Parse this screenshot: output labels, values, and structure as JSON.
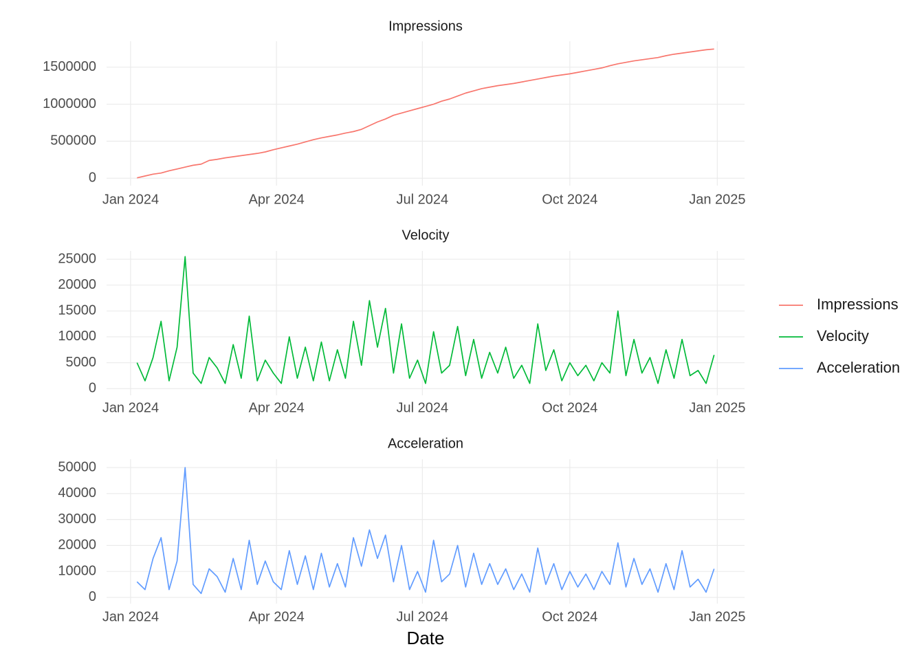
{
  "chart_data": [
    {
      "type": "line",
      "title": "Impressions",
      "x": [
        4,
        9,
        14,
        19,
        24,
        29,
        34,
        39,
        44,
        49,
        54,
        59,
        64,
        69,
        74,
        79,
        84,
        89,
        94,
        99,
        104,
        109,
        114,
        119,
        124,
        129,
        134,
        139,
        144,
        149,
        154,
        159,
        164,
        169,
        174,
        179,
        184,
        189,
        194,
        199,
        204,
        209,
        214,
        219,
        224,
        229,
        234,
        239,
        244,
        249,
        254,
        259,
        264,
        269,
        274,
        279,
        284,
        289,
        294,
        299,
        304,
        309,
        314,
        319,
        324,
        329,
        334,
        339,
        344,
        349,
        354,
        359,
        364
      ],
      "series": [
        {
          "name": "Impressions",
          "color": "#F8766D",
          "values": [
            5000,
            30000,
            55000,
            70000,
            100000,
            125000,
            150000,
            175000,
            190000,
            240000,
            255000,
            275000,
            290000,
            305000,
            320000,
            335000,
            355000,
            385000,
            410000,
            435000,
            460000,
            490000,
            520000,
            545000,
            565000,
            585000,
            610000,
            630000,
            660000,
            710000,
            760000,
            800000,
            850000,
            880000,
            910000,
            940000,
            970000,
            1000000,
            1040000,
            1070000,
            1110000,
            1150000,
            1180000,
            1210000,
            1230000,
            1250000,
            1265000,
            1280000,
            1300000,
            1320000,
            1340000,
            1360000,
            1380000,
            1395000,
            1410000,
            1430000,
            1450000,
            1470000,
            1490000,
            1520000,
            1545000,
            1565000,
            1585000,
            1600000,
            1615000,
            1630000,
            1655000,
            1675000,
            1690000,
            1705000,
            1720000,
            1735000,
            1745000
          ]
        }
      ],
      "xlim": [
        -15,
        383
      ],
      "xticks": [
        {
          "value": 0,
          "label": "Jan 2024"
        },
        {
          "value": 91,
          "label": "Apr 2024"
        },
        {
          "value": 182,
          "label": "Jul 2024"
        },
        {
          "value": 274,
          "label": "Oct 2024"
        },
        {
          "value": 366,
          "label": "Jan 2025"
        }
      ],
      "ylim": [
        -100000,
        1850000
      ],
      "yticks": [
        0,
        500000,
        1000000,
        1500000
      ],
      "grid": true
    },
    {
      "type": "line",
      "title": "Velocity",
      "x": [
        4,
        9,
        14,
        19,
        24,
        29,
        34,
        39,
        44,
        49,
        54,
        59,
        64,
        69,
        74,
        79,
        84,
        89,
        94,
        99,
        104,
        109,
        114,
        119,
        124,
        129,
        134,
        139,
        144,
        149,
        154,
        159,
        164,
        169,
        174,
        179,
        184,
        189,
        194,
        199,
        204,
        209,
        214,
        219,
        224,
        229,
        234,
        239,
        244,
        249,
        254,
        259,
        264,
        269,
        274,
        279,
        284,
        289,
        294,
        299,
        304,
        309,
        314,
        319,
        324,
        329,
        334,
        339,
        344,
        349,
        354,
        359,
        364
      ],
      "series": [
        {
          "name": "Velocity",
          "color": "#00BA38",
          "values": [
            5000,
            1500,
            6000,
            13000,
            1500,
            8000,
            25500,
            3000,
            1000,
            6000,
            4000,
            1000,
            8500,
            2000,
            14000,
            1500,
            5500,
            3000,
            1000,
            10000,
            2000,
            8000,
            1500,
            9000,
            1500,
            7500,
            2000,
            13000,
            4500,
            17000,
            8000,
            15500,
            3000,
            12500,
            2000,
            5500,
            1000,
            11000,
            3000,
            4500,
            12000,
            2500,
            9500,
            2000,
            7000,
            3000,
            8000,
            2000,
            4500,
            1000,
            12500,
            3500,
            7500,
            1500,
            5000,
            2500,
            4500,
            1500,
            5000,
            3000,
            15000,
            2500,
            9500,
            3000,
            6000,
            1000,
            7500,
            2000,
            9500,
            2500,
            3500,
            1000,
            6500
          ]
        }
      ],
      "xlim": [
        -15,
        383
      ],
      "xticks": [
        {
          "value": 0,
          "label": "Jan 2024"
        },
        {
          "value": 91,
          "label": "Apr 2024"
        },
        {
          "value": 182,
          "label": "Jul 2024"
        },
        {
          "value": 274,
          "label": "Oct 2024"
        },
        {
          "value": 366,
          "label": "Jan 2025"
        }
      ],
      "ylim": [
        -1300,
        26600
      ],
      "yticks": [
        0,
        5000,
        10000,
        15000,
        20000,
        25000
      ],
      "grid": true
    },
    {
      "type": "line",
      "title": "Acceleration",
      "x_label": "Date",
      "x": [
        4,
        9,
        14,
        19,
        24,
        29,
        34,
        39,
        44,
        49,
        54,
        59,
        64,
        69,
        74,
        79,
        84,
        89,
        94,
        99,
        104,
        109,
        114,
        119,
        124,
        129,
        134,
        139,
        144,
        149,
        154,
        159,
        164,
        169,
        174,
        179,
        184,
        189,
        194,
        199,
        204,
        209,
        214,
        219,
        224,
        229,
        234,
        239,
        244,
        249,
        254,
        259,
        264,
        269,
        274,
        279,
        284,
        289,
        294,
        299,
        304,
        309,
        314,
        319,
        324,
        329,
        334,
        339,
        344,
        349,
        354,
        359,
        364
      ],
      "series": [
        {
          "name": "Acceleration",
          "color": "#619CFF",
          "values": [
            6000,
            3000,
            15000,
            23000,
            3000,
            14000,
            50000,
            5000,
            1500,
            11000,
            8000,
            2000,
            15000,
            3000,
            22000,
            5000,
            14000,
            6000,
            3000,
            18000,
            5000,
            16000,
            3000,
            17000,
            4000,
            13000,
            4000,
            23000,
            12000,
            26000,
            15000,
            24000,
            6000,
            20000,
            3000,
            10000,
            2000,
            22000,
            6000,
            9000,
            20000,
            4000,
            17000,
            5000,
            13000,
            5000,
            11000,
            3000,
            9000,
            2000,
            19000,
            5000,
            13000,
            3000,
            10000,
            4000,
            9000,
            3000,
            10000,
            5000,
            21000,
            4000,
            15000,
            5000,
            11000,
            2000,
            13000,
            3000,
            18000,
            4000,
            7000,
            2000,
            11000
          ]
        }
      ],
      "xlim": [
        -15,
        383
      ],
      "xticks": [
        {
          "value": 0,
          "label": "Jan 2024"
        },
        {
          "value": 91,
          "label": "Apr 2024"
        },
        {
          "value": 182,
          "label": "Jul 2024"
        },
        {
          "value": 274,
          "label": "Oct 2024"
        },
        {
          "value": 366,
          "label": "Jan 2025"
        }
      ],
      "ylim": [
        -2400,
        53200
      ],
      "yticks": [
        0,
        10000,
        20000,
        30000,
        40000,
        50000
      ],
      "grid": true
    }
  ]
}
